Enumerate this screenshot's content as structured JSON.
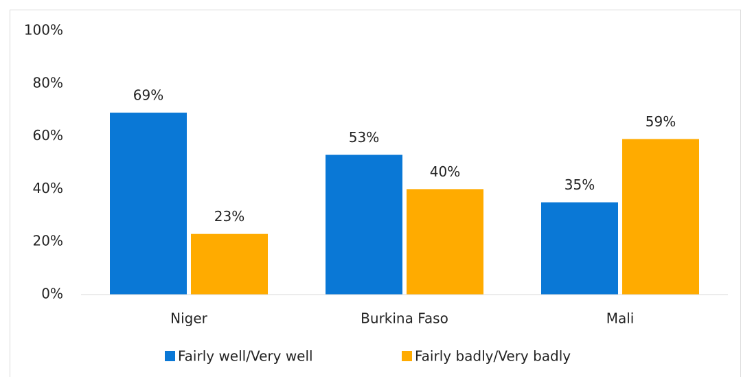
{
  "chart_data": {
    "type": "bar",
    "categories": [
      "Niger",
      "Burkina Faso",
      "Mali"
    ],
    "series": [
      {
        "name": "Fairly well/Very well",
        "color": "#0a78d6",
        "values": [
          69,
          53,
          35
        ],
        "value_labels": [
          "69%",
          "53%",
          "35%"
        ]
      },
      {
        "name": "Fairly badly/Very badly",
        "color": "#ffab00",
        "values": [
          23,
          40,
          59
        ],
        "value_labels": [
          "23%",
          "40%",
          "59%"
        ]
      }
    ],
    "ylim": [
      0,
      100
    ],
    "yticks": [
      {
        "value": 0,
        "label": "0%"
      },
      {
        "value": 20,
        "label": "20%"
      },
      {
        "value": 40,
        "label": "40%"
      },
      {
        "value": 60,
        "label": "60%"
      },
      {
        "value": 80,
        "label": "80%"
      },
      {
        "value": 100,
        "label": "100%"
      }
    ],
    "grid": false,
    "legend": "bottom"
  }
}
